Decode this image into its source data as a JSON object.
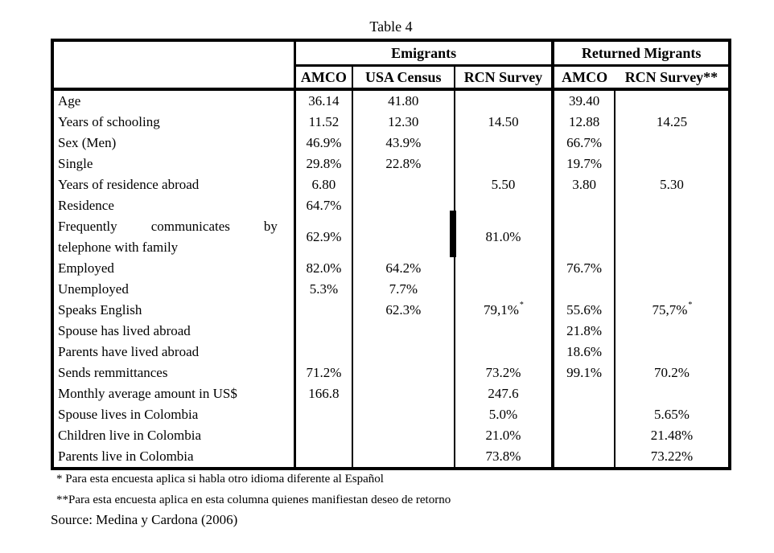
{
  "title": "Table 4",
  "table": {
    "groups": [
      {
        "label": "Emigrants",
        "colspan": 3
      },
      {
        "label": "Returned Migrants",
        "colspan": 2
      }
    ],
    "columns": [
      "AMCO",
      "USA Census",
      "RCN Survey",
      "AMCO",
      "RCN Survey**"
    ],
    "rows": [
      {
        "label": "Age",
        "values": [
          "36.14",
          "41.80",
          "",
          "39.40",
          ""
        ]
      },
      {
        "label": "Years of schooling",
        "values": [
          "11.52",
          "12.30",
          "14.50",
          "12.88",
          "14.25"
        ]
      },
      {
        "label": "Sex (Men)",
        "values": [
          "46.9%",
          "43.9%",
          "",
          "66.7%",
          ""
        ]
      },
      {
        "label": "Single",
        "values": [
          "29.8%",
          "22.8%",
          "",
          "19.7%",
          ""
        ]
      },
      {
        "label": "Years of residence abroad",
        "values": [
          "6.80",
          "",
          "5.50",
          "3.80",
          "5.30"
        ]
      },
      {
        "label": "Residence",
        "values": [
          "64.7%",
          "",
          "",
          "",
          ""
        ]
      },
      {
        "label": [
          "Frequently communicates by",
          "telephone with family"
        ],
        "values": [
          "62.9%",
          "",
          "81.0%",
          "",
          ""
        ]
      },
      {
        "label": "Employed",
        "values": [
          "82.0%",
          "64.2%",
          "",
          "76.7%",
          ""
        ]
      },
      {
        "label": "Unemployed",
        "values": [
          "5.3%",
          "7.7%",
          "",
          "",
          ""
        ]
      },
      {
        "label": "Speaks English",
        "values": [
          "",
          "62.3%",
          "79,1%*",
          "55.6%",
          "75,7%*"
        ]
      },
      {
        "label": "Spouse has lived abroad",
        "values": [
          "",
          "",
          "",
          "21.8%",
          ""
        ]
      },
      {
        "label": "Parents have lived abroad",
        "values": [
          "",
          "",
          "",
          "18.6%",
          ""
        ]
      },
      {
        "label": "Sends remmittances",
        "values": [
          "71.2%",
          "",
          "73.2%",
          "99.1%",
          "70.2%"
        ]
      },
      {
        "label": "Monthly average amount in US$",
        "values": [
          "166.8",
          "",
          "247.6",
          "",
          ""
        ]
      },
      {
        "label": "Spouse lives in Colombia",
        "values": [
          "",
          "",
          "5.0%",
          "",
          "5.65%"
        ]
      },
      {
        "label": "Children live in Colombia",
        "values": [
          "",
          "",
          "21.0%",
          "",
          "21.48%"
        ]
      },
      {
        "label": "Parents live in Colombia",
        "values": [
          "",
          "",
          "73.8%",
          "",
          "73.22%"
        ]
      }
    ]
  },
  "footnotes": [
    "* Para esta encuesta aplica si habla otro idioma diferente al Español",
    "**Para esta encuesta aplica en esta columna quienes manifiestan deseo de retorno"
  ],
  "source": "Source: Medina y Cardona (2006)",
  "colors": {
    "ink": "#000000",
    "paper": "#ffffff"
  }
}
